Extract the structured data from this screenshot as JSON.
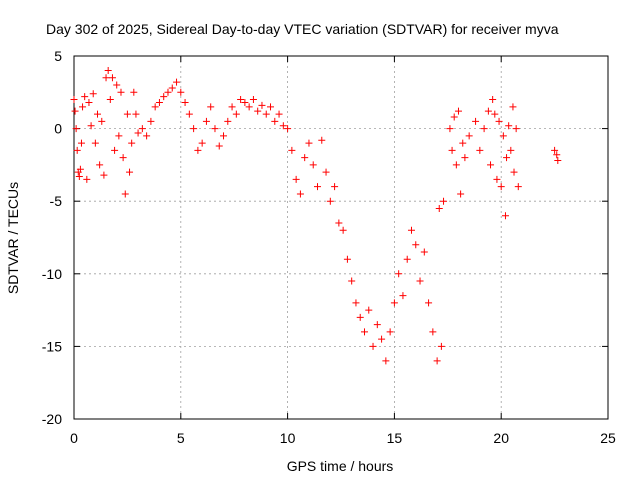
{
  "chart_data": {
    "type": "scatter",
    "title": "Day 302 of 2025, Sidereal Day-to-day VTEC variation (SDTVAR) for receiver myva",
    "xlabel": "GPS time / hours",
    "ylabel": "SDTVAR / TECUs",
    "xlim": [
      0,
      25
    ],
    "ylim": [
      -20,
      5
    ],
    "grid": true,
    "marker": "+",
    "color": "#ff0000",
    "x_ticks": [
      0,
      5,
      10,
      15,
      20,
      25
    ],
    "y_ticks": [
      -20,
      -15,
      -10,
      -5,
      0,
      5
    ],
    "x_tick_labels": [
      "0",
      "5",
      "10",
      "15",
      "20",
      "25"
    ],
    "y_tick_labels": [
      "-20",
      "-15",
      "-10",
      "-5",
      "0",
      "5"
    ],
    "series": [
      {
        "name": "SDTVAR",
        "points": [
          [
            0.0,
            2.0
          ],
          [
            0.05,
            1.2
          ],
          [
            0.1,
            0.0
          ],
          [
            0.15,
            -1.5
          ],
          [
            0.2,
            -3.0
          ],
          [
            0.25,
            -3.3
          ],
          [
            0.3,
            -2.8
          ],
          [
            0.35,
            -1.0
          ],
          [
            0.4,
            1.5
          ],
          [
            0.5,
            2.2
          ],
          [
            0.6,
            -3.5
          ],
          [
            0.7,
            1.8
          ],
          [
            0.8,
            0.2
          ],
          [
            0.9,
            2.4
          ],
          [
            1.0,
            -1.0
          ],
          [
            1.1,
            1.0
          ],
          [
            1.2,
            -2.5
          ],
          [
            1.3,
            0.5
          ],
          [
            1.4,
            -3.2
          ],
          [
            1.5,
            3.5
          ],
          [
            1.6,
            4.0
          ],
          [
            1.7,
            2.0
          ],
          [
            1.8,
            3.5
          ],
          [
            1.9,
            -1.5
          ],
          [
            2.0,
            3.0
          ],
          [
            2.1,
            -0.5
          ],
          [
            2.2,
            2.5
          ],
          [
            2.3,
            -2.0
          ],
          [
            2.4,
            -4.5
          ],
          [
            2.5,
            1.0
          ],
          [
            2.6,
            -3.0
          ],
          [
            2.7,
            -1.0
          ],
          [
            2.8,
            2.5
          ],
          [
            2.9,
            1.0
          ],
          [
            3.0,
            -0.3
          ],
          [
            3.2,
            0.0
          ],
          [
            3.4,
            -0.5
          ],
          [
            3.6,
            0.5
          ],
          [
            3.8,
            1.5
          ],
          [
            4.0,
            1.8
          ],
          [
            4.2,
            2.2
          ],
          [
            4.4,
            2.5
          ],
          [
            4.6,
            2.8
          ],
          [
            4.8,
            3.2
          ],
          [
            5.0,
            2.5
          ],
          [
            5.2,
            1.8
          ],
          [
            5.4,
            1.0
          ],
          [
            5.6,
            0.0
          ],
          [
            5.8,
            -1.5
          ],
          [
            6.0,
            -1.0
          ],
          [
            6.2,
            0.5
          ],
          [
            6.4,
            1.5
          ],
          [
            6.6,
            0.0
          ],
          [
            6.8,
            -1.2
          ],
          [
            7.0,
            -0.5
          ],
          [
            7.2,
            0.5
          ],
          [
            7.4,
            1.5
          ],
          [
            7.6,
            1.0
          ],
          [
            7.8,
            2.0
          ],
          [
            8.0,
            1.8
          ],
          [
            8.2,
            1.5
          ],
          [
            8.4,
            2.0
          ],
          [
            8.6,
            1.2
          ],
          [
            8.8,
            1.6
          ],
          [
            9.0,
            1.0
          ],
          [
            9.2,
            1.5
          ],
          [
            9.4,
            0.5
          ],
          [
            9.6,
            1.0
          ],
          [
            9.8,
            0.2
          ],
          [
            10.0,
            0.0
          ],
          [
            10.2,
            -1.5
          ],
          [
            10.4,
            -3.5
          ],
          [
            10.6,
            -4.5
          ],
          [
            10.8,
            -2.0
          ],
          [
            11.0,
            -1.0
          ],
          [
            11.2,
            -2.5
          ],
          [
            11.4,
            -4.0
          ],
          [
            11.6,
            -0.8
          ],
          [
            11.8,
            -3.0
          ],
          [
            12.0,
            -5.0
          ],
          [
            12.2,
            -4.0
          ],
          [
            12.4,
            -6.5
          ],
          [
            12.6,
            -7.0
          ],
          [
            12.8,
            -9.0
          ],
          [
            13.0,
            -10.5
          ],
          [
            13.2,
            -12.0
          ],
          [
            13.4,
            -13.0
          ],
          [
            13.6,
            -14.0
          ],
          [
            13.8,
            -12.5
          ],
          [
            14.0,
            -15.0
          ],
          [
            14.2,
            -13.5
          ],
          [
            14.4,
            -14.5
          ],
          [
            14.6,
            -16.0
          ],
          [
            14.8,
            -14.0
          ],
          [
            15.0,
            -12.0
          ],
          [
            15.2,
            -10.0
          ],
          [
            15.4,
            -11.5
          ],
          [
            15.6,
            -9.0
          ],
          [
            15.8,
            -7.0
          ],
          [
            16.0,
            -8.0
          ],
          [
            16.2,
            -10.5
          ],
          [
            16.4,
            -8.5
          ],
          [
            16.6,
            -12.0
          ],
          [
            16.8,
            -14.0
          ],
          [
            17.0,
            -16.0
          ],
          [
            17.1,
            -5.5
          ],
          [
            17.2,
            -15.0
          ],
          [
            17.3,
            -5.0
          ],
          [
            17.6,
            0.0
          ],
          [
            17.7,
            -1.5
          ],
          [
            17.8,
            0.8
          ],
          [
            17.9,
            -2.5
          ],
          [
            18.0,
            1.2
          ],
          [
            18.1,
            -4.5
          ],
          [
            18.2,
            -1.0
          ],
          [
            18.3,
            -2.0
          ],
          [
            18.5,
            -0.5
          ],
          [
            18.8,
            0.5
          ],
          [
            19.0,
            -1.5
          ],
          [
            19.2,
            0.0
          ],
          [
            19.4,
            1.2
          ],
          [
            19.5,
            -2.5
          ],
          [
            19.6,
            2.0
          ],
          [
            19.7,
            1.0
          ],
          [
            19.8,
            -3.5
          ],
          [
            19.9,
            0.5
          ],
          [
            20.0,
            -4.0
          ],
          [
            20.1,
            -0.5
          ],
          [
            20.2,
            -6.0
          ],
          [
            20.25,
            -2.0
          ],
          [
            20.35,
            0.2
          ],
          [
            20.45,
            -1.5
          ],
          [
            20.55,
            1.5
          ],
          [
            20.6,
            -3.0
          ],
          [
            20.7,
            0.0
          ],
          [
            20.8,
            -4.0
          ],
          [
            22.5,
            -1.5
          ],
          [
            22.6,
            -1.8
          ],
          [
            22.65,
            -2.2
          ]
        ]
      }
    ]
  }
}
